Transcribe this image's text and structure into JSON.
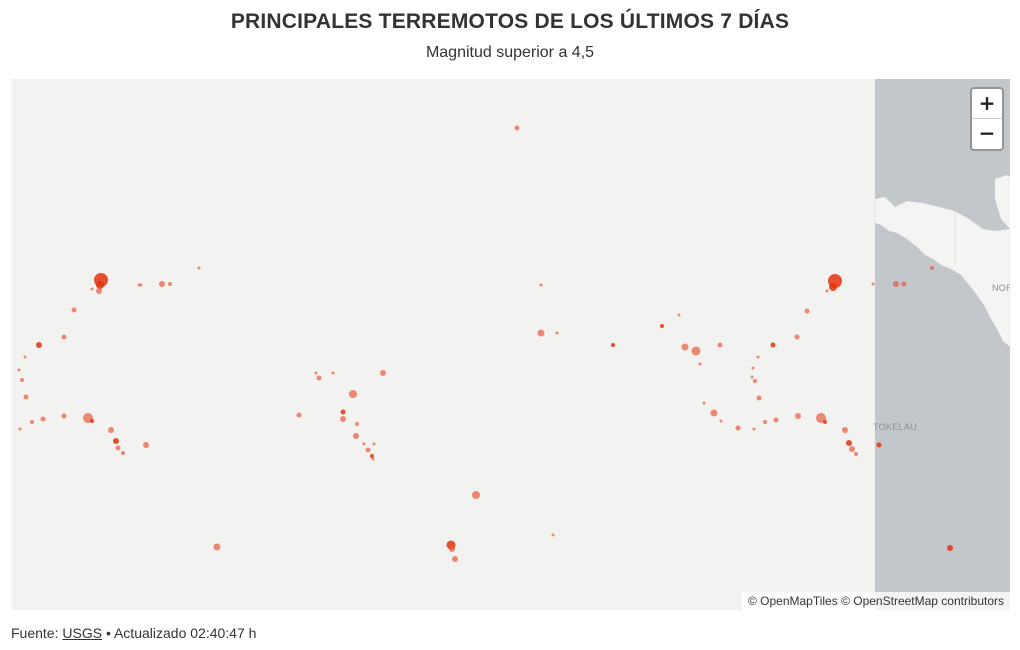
{
  "header": {
    "title": "PRINCIPALES TERREMOTOS DE LOS ÚLTIMOS 7 DÍAS",
    "subtitle": "Magnitud superior a 4,5"
  },
  "map": {
    "zoom_in_label": "+",
    "zoom_out_label": "−",
    "labels": {
      "tokelau": "TOKELAU",
      "north": "NORT"
    },
    "attribution": {
      "openmaptiles": "© OpenMapTiles",
      "osm": "© OpenStreetMap contributors"
    },
    "colors": {
      "land": "#f2f2f0",
      "water": "#c1c7cb",
      "quake": "#e85a3c",
      "quake_strong": "#e3340f"
    }
  },
  "footer": {
    "source_prefix": "Fuente:",
    "source_link": "USGS",
    "updated": "• Actualizado 02:40:47 h"
  }
}
